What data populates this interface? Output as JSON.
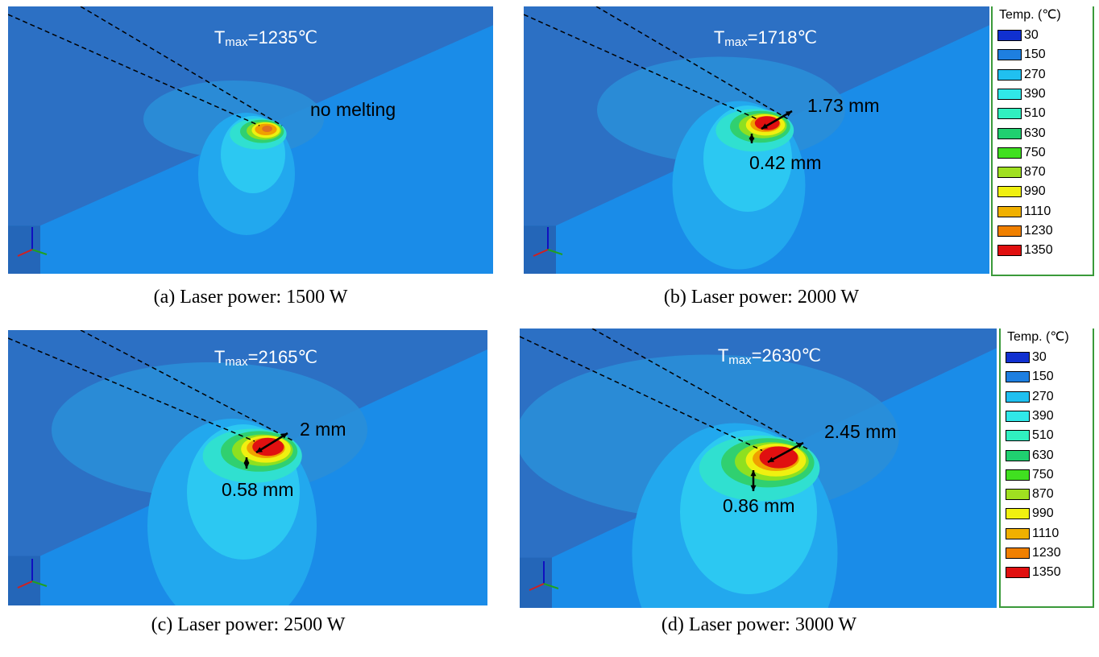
{
  "panels": [
    {
      "tmax": {
        "symbol": "T",
        "subscript": "max",
        "value": "=1235℃"
      },
      "annotations": [
        "no melting"
      ],
      "caption": "(a) Laser power: 1500 W"
    },
    {
      "tmax": {
        "symbol": "T",
        "subscript": "max",
        "value": "=1718℃"
      },
      "annotations": [
        "1.73 mm",
        "0.42 mm"
      ],
      "caption": "(b) Laser power: 2000 W"
    },
    {
      "tmax": {
        "symbol": "T",
        "subscript": "max",
        "value": "=2165℃"
      },
      "annotations": [
        "2 mm",
        "0.58 mm"
      ],
      "caption": "(c) Laser power: 2500 W"
    },
    {
      "tmax": {
        "symbol": "T",
        "subscript": "max",
        "value": "=2630℃"
      },
      "annotations": [
        "2.45 mm",
        "0.86 mm"
      ],
      "caption": "(d) Laser power: 3000 W"
    }
  ],
  "legends": [
    {
      "title": "Temp. (℃)",
      "values": [
        30,
        150,
        270,
        390,
        510,
        630,
        750,
        870,
        990,
        1110,
        1230,
        1350
      ],
      "colors": [
        "#1030d0",
        "#1e7fe0",
        "#20c0f0",
        "#30e8e8",
        "#30f0c0",
        "#20d070",
        "#40e020",
        "#a0e020",
        "#f0f010",
        "#f0b000",
        "#f08000",
        "#e01010"
      ]
    },
    {
      "title": "Temp. (℃)",
      "values": [
        30,
        150,
        270,
        390,
        510,
        630,
        750,
        870,
        990,
        1110,
        1230,
        1350
      ],
      "colors": [
        "#1030d0",
        "#1e7fe0",
        "#20c0f0",
        "#30e8e8",
        "#30f0c0",
        "#20d070",
        "#40e020",
        "#a0e020",
        "#f0f010",
        "#f0b000",
        "#f08000",
        "#e01010"
      ]
    }
  ]
}
